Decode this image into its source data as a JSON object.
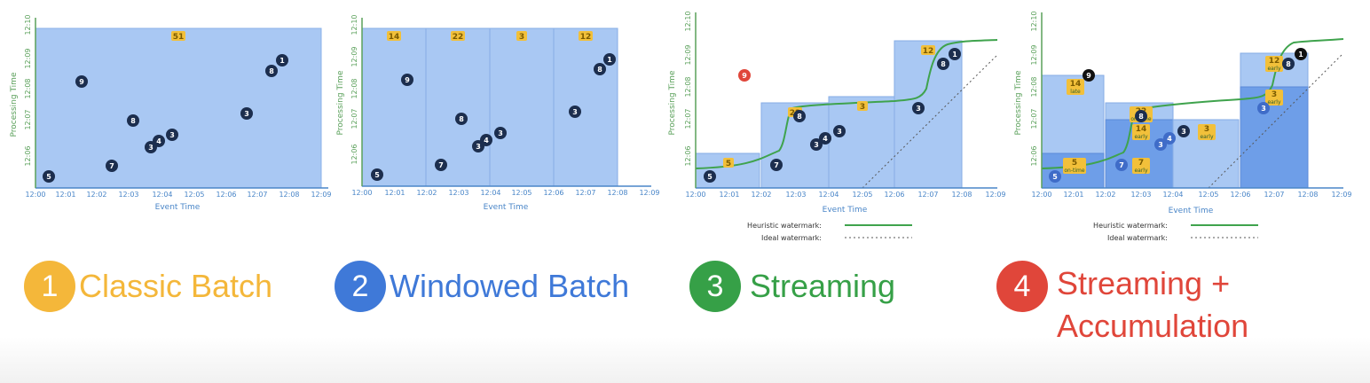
{
  "panels": [
    {
      "id": "classic",
      "results": [
        {
          "text": "51"
        }
      ],
      "dots": [
        "5",
        "9",
        "7",
        "8",
        "3",
        "4",
        "3",
        "3",
        "8",
        "1"
      ]
    },
    {
      "id": "windowed",
      "results": [
        {
          "text": "14"
        },
        {
          "text": "22"
        },
        {
          "text": "3"
        },
        {
          "text": "12"
        }
      ],
      "dots": [
        "5",
        "9",
        "7",
        "8",
        "3",
        "4",
        "3",
        "3",
        "8",
        "1"
      ]
    },
    {
      "id": "streaming",
      "results": [
        {
          "text": "5"
        },
        {
          "text": "22"
        },
        {
          "text": "3"
        },
        {
          "text": "12"
        }
      ],
      "dots": [
        "9",
        "5",
        "7",
        "8",
        "3",
        "4",
        "3",
        "3",
        "8",
        "1"
      ],
      "legend": {
        "heuristic": "Heuristic watermark:",
        "ideal": "Ideal watermark:"
      }
    },
    {
      "id": "accumulation",
      "results": [
        {
          "text": "14",
          "sub": "late"
        },
        {
          "text": "22",
          "sub": "on-time"
        },
        {
          "text": "14",
          "sub": "early"
        },
        {
          "text": "3",
          "sub": "early"
        },
        {
          "text": "5",
          "sub": "on-time"
        },
        {
          "text": "7",
          "sub": "early"
        },
        {
          "text": "12",
          "sub": "early"
        },
        {
          "text": "3",
          "sub": "early"
        }
      ],
      "dots": [
        "9",
        "5",
        "7",
        "8",
        "3",
        "4",
        "3",
        "3",
        "8",
        "1"
      ],
      "legend": {
        "heuristic": "Heuristic watermark:",
        "ideal": "Ideal watermark:"
      }
    }
  ],
  "axes": {
    "x_title": "Event Time",
    "y_title": "Processing Time",
    "x_ticks": [
      "12:00",
      "12:01",
      "12:02",
      "12:03",
      "12:04",
      "12:05",
      "12:06",
      "12:07",
      "12:08",
      "12:09"
    ],
    "y_ticks": [
      "12:06",
      "12:07",
      "12:08",
      "12:09",
      "12:10"
    ]
  },
  "labels": [
    {
      "number": "1",
      "text": "Classic Batch",
      "color": "#f4b73a"
    },
    {
      "number": "2",
      "text": "Windowed Batch",
      "color": "#3f79d8"
    },
    {
      "number": "3",
      "text": "Streaming",
      "color": "#36a047"
    },
    {
      "number": "4",
      "text": "Streaming + Accumulation",
      "line1": "Streaming +",
      "line2": "Accumulation",
      "color": "#e0463a"
    }
  ],
  "colors": {
    "region": "#a9c8f3",
    "region_dark": "#6e9ee8",
    "dot": "#1c2e4e",
    "late_dot": "#e0463a",
    "result_fill": "#f2c03a",
    "watermark": "#3fa34d"
  }
}
